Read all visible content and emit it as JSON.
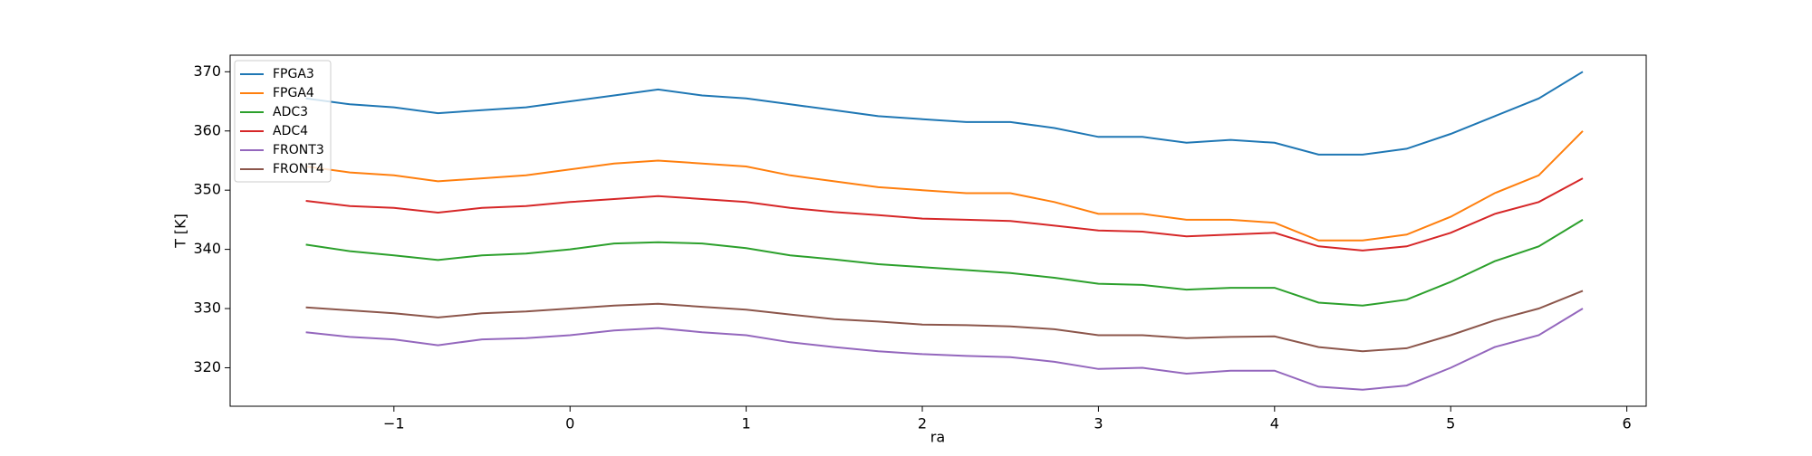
{
  "chart_data": {
    "type": "line",
    "xlabel": "ra",
    "ylabel": "T [K]",
    "x": [
      -1.5,
      -1.25,
      -1,
      -0.75,
      -0.5,
      -0.25,
      0,
      0.25,
      0.5,
      0.75,
      1,
      1.25,
      1.5,
      1.75,
      2,
      2.25,
      2.5,
      2.75,
      3,
      3.25,
      3.5,
      3.75,
      4,
      4.25,
      4.5,
      4.75,
      5,
      5.25,
      5.5,
      5.75
    ],
    "series": [
      {
        "name": "FPGA3",
        "color": "#1f77b4",
        "values": [
          365.5,
          364.5,
          364,
          363,
          363.5,
          364,
          365,
          366,
          367,
          366,
          365.5,
          364.5,
          363.5,
          362.5,
          362,
          361.5,
          361.5,
          360.5,
          359,
          359,
          358,
          358.5,
          358,
          356,
          356,
          357,
          359.5,
          362.5,
          365.5,
          370
        ]
      },
      {
        "name": "FPGA4",
        "color": "#ff7f0e",
        "values": [
          354,
          353,
          352.5,
          351.5,
          352,
          352.5,
          353.5,
          354.5,
          355,
          354.5,
          354,
          352.5,
          351.5,
          350.5,
          350,
          349.5,
          349.5,
          348,
          346,
          346,
          345,
          345,
          344.5,
          341.5,
          341.5,
          342.5,
          345.5,
          349.5,
          352.5,
          360
        ]
      },
      {
        "name": "ADC3",
        "color": "#2ca02c",
        "values": [
          340.8,
          339.7,
          339,
          338.2,
          339,
          339.3,
          340,
          341,
          341.2,
          341,
          340.2,
          339,
          338.3,
          337.5,
          337,
          336.5,
          336,
          335.2,
          334.2,
          334,
          333.2,
          333.5,
          333.5,
          331,
          330.5,
          331.5,
          334.5,
          338,
          340.5,
          345
        ]
      },
      {
        "name": "ADC4",
        "color": "#d62728",
        "values": [
          348.2,
          347.3,
          347,
          346.2,
          347,
          347.3,
          348,
          348.5,
          349,
          348.5,
          348,
          347,
          346.3,
          345.8,
          345.2,
          345,
          344.8,
          344,
          343.2,
          343,
          342.2,
          342.5,
          342.8,
          340.5,
          339.8,
          340.5,
          342.8,
          346,
          348,
          352
        ]
      },
      {
        "name": "FRONT3",
        "color": "#9467bd",
        "values": [
          326,
          325.2,
          324.8,
          323.8,
          324.8,
          325,
          325.5,
          326.3,
          326.7,
          326,
          325.5,
          324.3,
          323.5,
          322.8,
          322.3,
          322,
          321.8,
          321,
          319.8,
          320,
          319,
          319.5,
          319.5,
          316.8,
          316.3,
          317,
          320,
          323.5,
          325.5,
          330
        ]
      },
      {
        "name": "FRONT4",
        "color": "#8c564b",
        "values": [
          330.2,
          329.7,
          329.2,
          328.5,
          329.2,
          329.5,
          330,
          330.5,
          330.8,
          330.3,
          329.8,
          329,
          328.2,
          327.8,
          327.3,
          327.2,
          327,
          326.5,
          325.5,
          325.5,
          325,
          325.2,
          325.3,
          323.5,
          322.8,
          323.3,
          325.5,
          328,
          330,
          333
        ]
      }
    ],
    "xlim": [
      -1.93,
      6.11
    ],
    "ylim": [
      313.5,
      372.8
    ],
    "xticks": [
      {
        "value": -1,
        "label": "−1"
      },
      0,
      1,
      2,
      3,
      4,
      5,
      6
    ],
    "yticks": [
      320,
      330,
      340,
      350,
      360,
      370
    ],
    "legend": "upper left"
  }
}
